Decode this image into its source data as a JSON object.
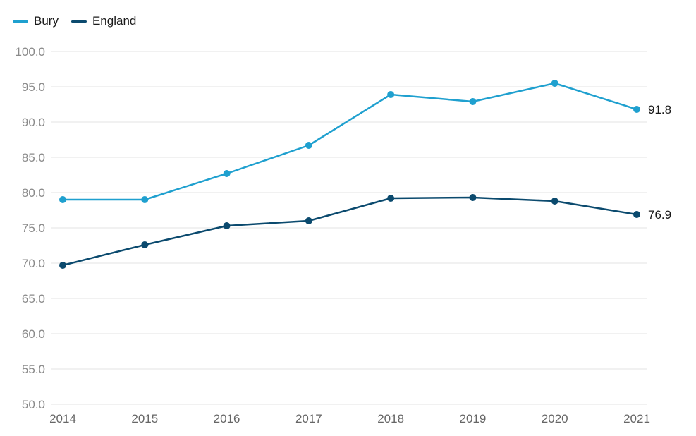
{
  "chart_data": {
    "type": "line",
    "x": [
      "2014",
      "2015",
      "2016",
      "2017",
      "2018",
      "2019",
      "2020",
      "2021"
    ],
    "ylim": [
      50,
      100
    ],
    "yticks": [
      "50.0",
      "55.0",
      "60.0",
      "65.0",
      "70.0",
      "75.0",
      "80.0",
      "85.0",
      "90.0",
      "95.0",
      "100.0"
    ],
    "grid": true,
    "legend_position": "top-left",
    "series": [
      {
        "name": "Bury",
        "color": "#1fa0cf",
        "values": [
          79.0,
          79.0,
          82.7,
          86.7,
          93.9,
          92.9,
          95.5,
          91.8
        ],
        "end_label": "91.8"
      },
      {
        "name": "England",
        "color": "#0b4a6e",
        "values": [
          69.7,
          72.6,
          75.3,
          76.0,
          79.2,
          79.3,
          78.8,
          76.9
        ],
        "end_label": "76.9"
      }
    ]
  }
}
